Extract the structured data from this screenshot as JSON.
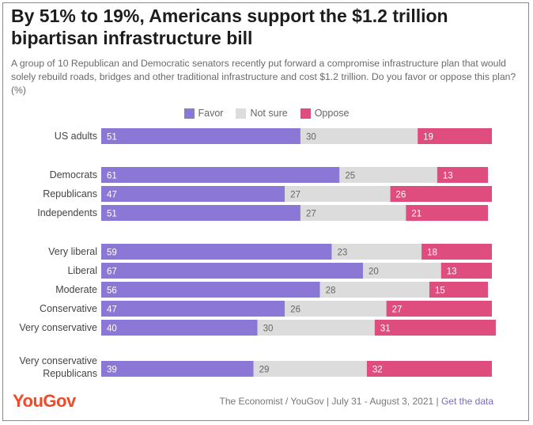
{
  "title": "By 51% to 19%, Americans support the $1.2 trillion bipartisan infrastructure bill",
  "subtitle": "A group of 10 Republican and Democratic senators recently put forward a compromise infrastructure plan that would solely rebuild roads, bridges and other traditional infrastructure and cost $1.2 trillion. Do you favor or oppose this plan? (%)",
  "colors": {
    "favor": "#8b78d6",
    "not_sure": "#dcdcdc",
    "oppose": "#df4d7f"
  },
  "chart_data": {
    "type": "bar",
    "stacked": true,
    "orientation": "horizontal",
    "series": [
      {
        "name": "Favor",
        "color": "#8b78d6",
        "values": [
          51,
          61,
          47,
          51,
          59,
          67,
          56,
          47,
          40,
          39
        ]
      },
      {
        "name": "Not sure",
        "color": "#dcdcdc",
        "values": [
          30,
          25,
          27,
          27,
          23,
          20,
          28,
          26,
          30,
          29
        ]
      },
      {
        "name": "Oppose",
        "color": "#df4d7f",
        "values": [
          19,
          13,
          26,
          21,
          18,
          13,
          15,
          27,
          31,
          32
        ]
      }
    ],
    "categories": [
      {
        "lines": [
          "US adults"
        ]
      },
      {
        "lines": [
          "Democrats"
        ]
      },
      {
        "lines": [
          "Republicans"
        ]
      },
      {
        "lines": [
          "Independents"
        ]
      },
      {
        "lines": [
          "Very liberal"
        ]
      },
      {
        "lines": [
          "Liberal"
        ]
      },
      {
        "lines": [
          "Moderate"
        ]
      },
      {
        "lines": [
          "Conservative"
        ]
      },
      {
        "lines": [
          "Very conservative"
        ]
      },
      {
        "lines": [
          "Very conservative",
          "Republicans"
        ]
      }
    ],
    "legend_position": "top-center",
    "xlim": [
      0,
      100
    ],
    "grid": false
  },
  "footer": {
    "logo": "YouGov",
    "source": "The Economist / YouGov | July 31 - August 3, 2021 | ",
    "link": "Get the data"
  }
}
